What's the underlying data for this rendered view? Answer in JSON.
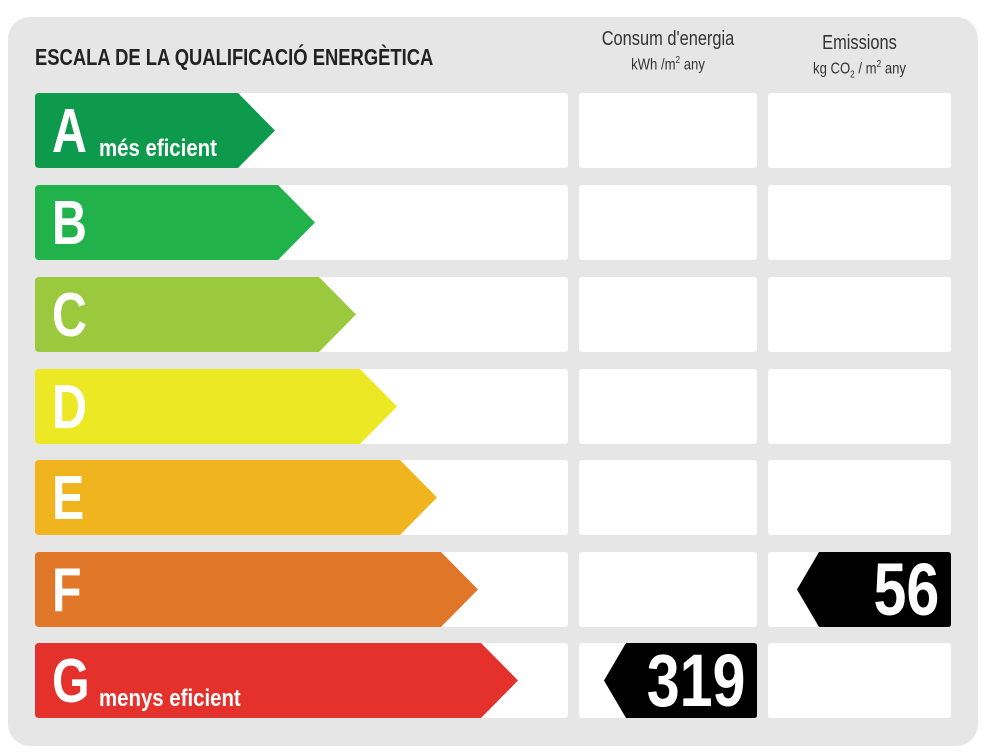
{
  "title": "ESCALA DE LA QUALIFICACIÓ ENERGÈTICA",
  "columns": {
    "consumption": {
      "label": "Consum d'energia",
      "unit_main": "kWh /m",
      "unit_sup": "2",
      "unit_tail": " any"
    },
    "emissions": {
      "label": "Emissions",
      "unit_a": "kg CO",
      "unit_sub": "2",
      "unit_b": " / m",
      "unit_sup": "2",
      "unit_tail": " any"
    }
  },
  "classes": [
    {
      "letter": "A",
      "sublabel": "més eficient",
      "color": "#0e9a4c"
    },
    {
      "letter": "B",
      "sublabel": "",
      "color": "#22b24c"
    },
    {
      "letter": "C",
      "sublabel": "",
      "color": "#9bc93d"
    },
    {
      "letter": "D",
      "sublabel": "",
      "color": "#ece824"
    },
    {
      "letter": "E",
      "sublabel": "",
      "color": "#f0b51e"
    },
    {
      "letter": "F",
      "sublabel": "",
      "color": "#e07627"
    },
    {
      "letter": "G",
      "sublabel": "menys eficient",
      "color": "#e4312b"
    }
  ],
  "ratings": {
    "consumption": {
      "value": "319",
      "class": "G"
    },
    "emissions": {
      "value": "56",
      "class": "F"
    }
  }
}
